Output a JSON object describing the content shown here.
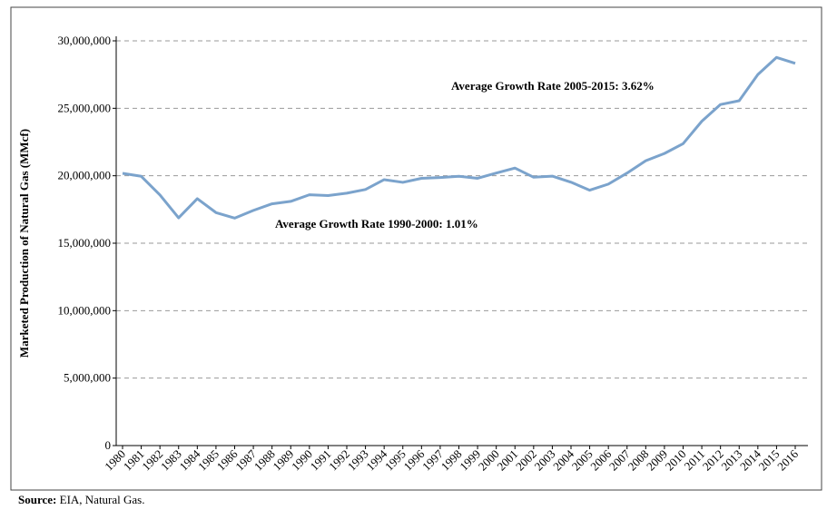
{
  "chart_data": {
    "type": "line",
    "y_label": "Marketed Production of Natural Gas (MMcf)",
    "source_label": "Source:",
    "source_text": " EIA,  Natural Gas.",
    "annotations": [
      "Average Growth Rate 2005-2015: 3.62%",
      "Average Growth Rate 1990-2000: 1.01%"
    ],
    "categories": [
      "1980",
      "1981",
      "1982",
      "1983",
      "1984",
      "1985",
      "1986",
      "1987",
      "1988",
      "1989",
      "1990",
      "1991",
      "1992",
      "1993",
      "1994",
      "1995",
      "1996",
      "1997",
      "1998",
      "1999",
      "2000",
      "2001",
      "2002",
      "2003",
      "2004",
      "2005",
      "2006",
      "2007",
      "2008",
      "2009",
      "2010",
      "2011",
      "2012",
      "2013",
      "2014",
      "2015",
      "2016"
    ],
    "series": [
      {
        "name": "Marketed Production",
        "color": "#7ba3cc",
        "values": [
          20180000,
          19960000,
          18580000,
          16880000,
          18300000,
          17270000,
          16860000,
          17430000,
          17920000,
          18100000,
          18590000,
          18530000,
          18710000,
          18980000,
          19710000,
          19510000,
          19810000,
          19870000,
          19960000,
          19810000,
          20200000,
          20570000,
          19890000,
          19970000,
          19520000,
          18930000,
          19380000,
          20200000,
          21110000,
          21650000,
          22380000,
          24040000,
          25280000,
          25560000,
          27500000,
          28770000,
          28330000
        ]
      }
    ],
    "ylim": [
      0,
      30000000
    ],
    "yticks": [
      0,
      {
        "value": 5000000,
        "label": "5,000,000"
      },
      {
        "value": 10000000,
        "label": "10,000,000"
      },
      {
        "value": 15000000,
        "label": "15,000,000"
      },
      {
        "value": 20000000,
        "label": "20,000,000"
      },
      {
        "value": 25000000,
        "label": "25,000,000"
      },
      {
        "value": 30000000,
        "label": "30,000,000"
      }
    ],
    "grid": true
  }
}
